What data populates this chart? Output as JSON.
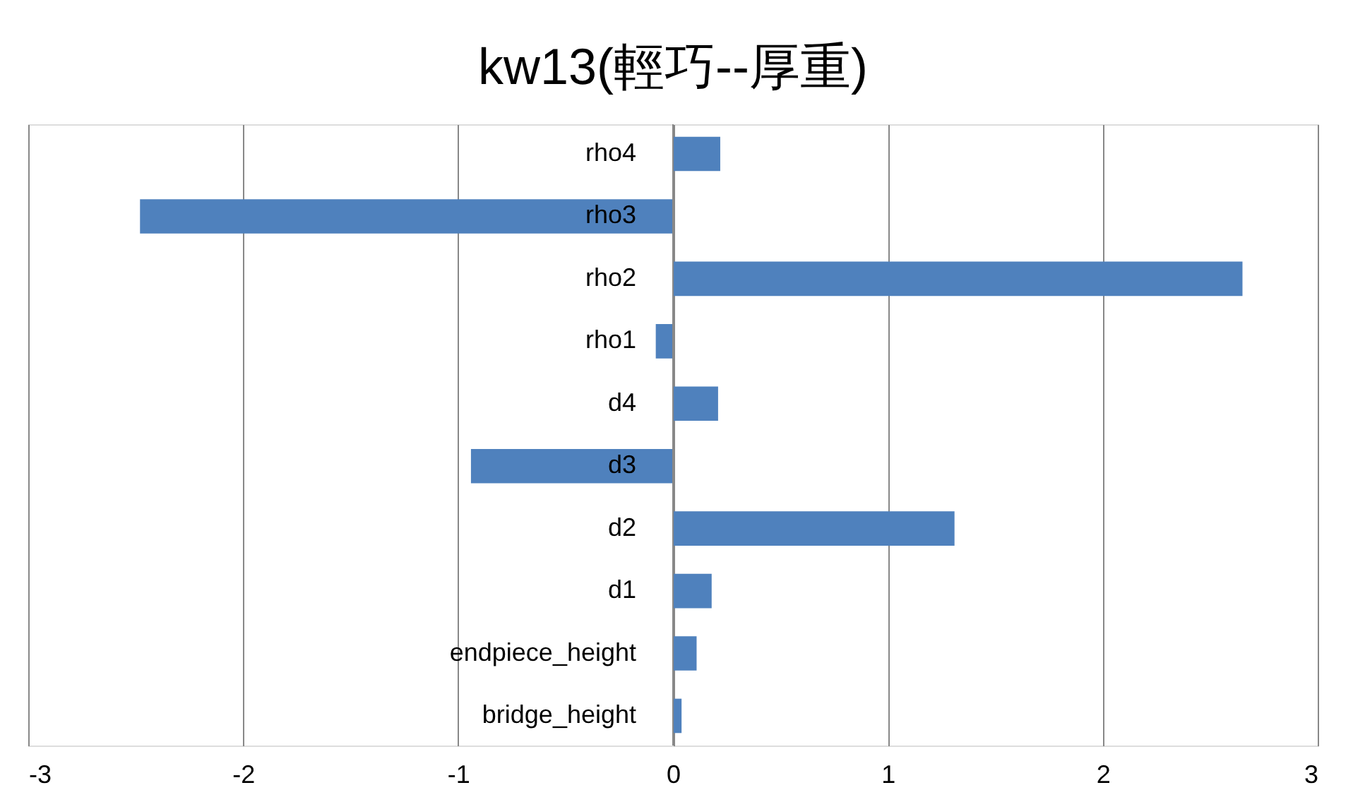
{
  "chart_data": {
    "type": "bar",
    "orientation": "horizontal",
    "title": "kw13(輕巧--厚重)",
    "categories": [
      "rho4",
      "rho3",
      "rho2",
      "rho1",
      "d4",
      "d3",
      "d2",
      "d1",
      "endpiece_height",
      "bridge_height"
    ],
    "series": [
      {
        "color": "#4f81bd",
        "values": [
          0.22,
          -2.48,
          2.65,
          -0.08,
          0.21,
          -0.94,
          1.31,
          0.18,
          0.11,
          0.04
        ]
      }
    ],
    "xlim": [
      -3,
      3
    ],
    "xticks": [
      -3,
      -2,
      -1,
      0,
      1,
      2,
      3
    ],
    "grid": "x"
  }
}
